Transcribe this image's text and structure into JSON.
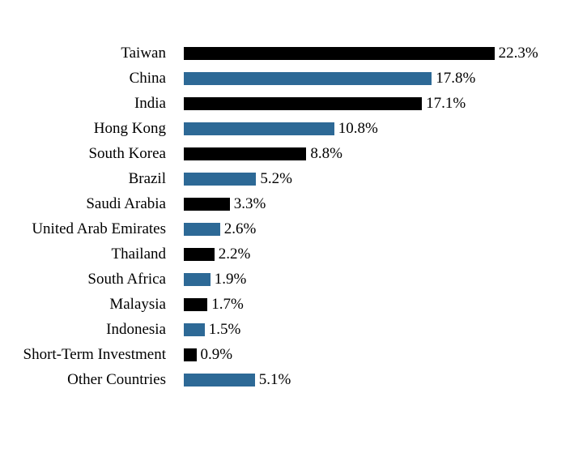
{
  "chart_data": {
    "type": "bar",
    "orientation": "horizontal",
    "title": "",
    "xlabel": "",
    "ylabel": "",
    "xlim": [
      0,
      25
    ],
    "grid": false,
    "legend": "none",
    "categories": [
      "Taiwan",
      "China",
      "India",
      "Hong Kong",
      "South Korea",
      "Brazil",
      "Saudi Arabia",
      "United Arab Emirates",
      "Thailand",
      "South Africa",
      "Malaysia",
      "Indonesia",
      "Short-Term Investment",
      "Other Countries"
    ],
    "values": [
      22.3,
      17.8,
      17.1,
      10.8,
      8.8,
      5.2,
      3.3,
      2.6,
      2.2,
      1.9,
      1.7,
      1.5,
      0.9,
      5.1
    ],
    "value_labels": [
      "22.3%",
      "17.8%",
      "17.1%",
      "10.8%",
      "8.8%",
      "5.2%",
      "3.3%",
      "2.6%",
      "2.2%",
      "1.9%",
      "1.7%",
      "1.5%",
      "0.9%",
      "5.1%"
    ],
    "bar_color_pattern": [
      "#000000",
      "#2D6996"
    ],
    "text_color": "#000000",
    "background_color": "#ffffff"
  }
}
